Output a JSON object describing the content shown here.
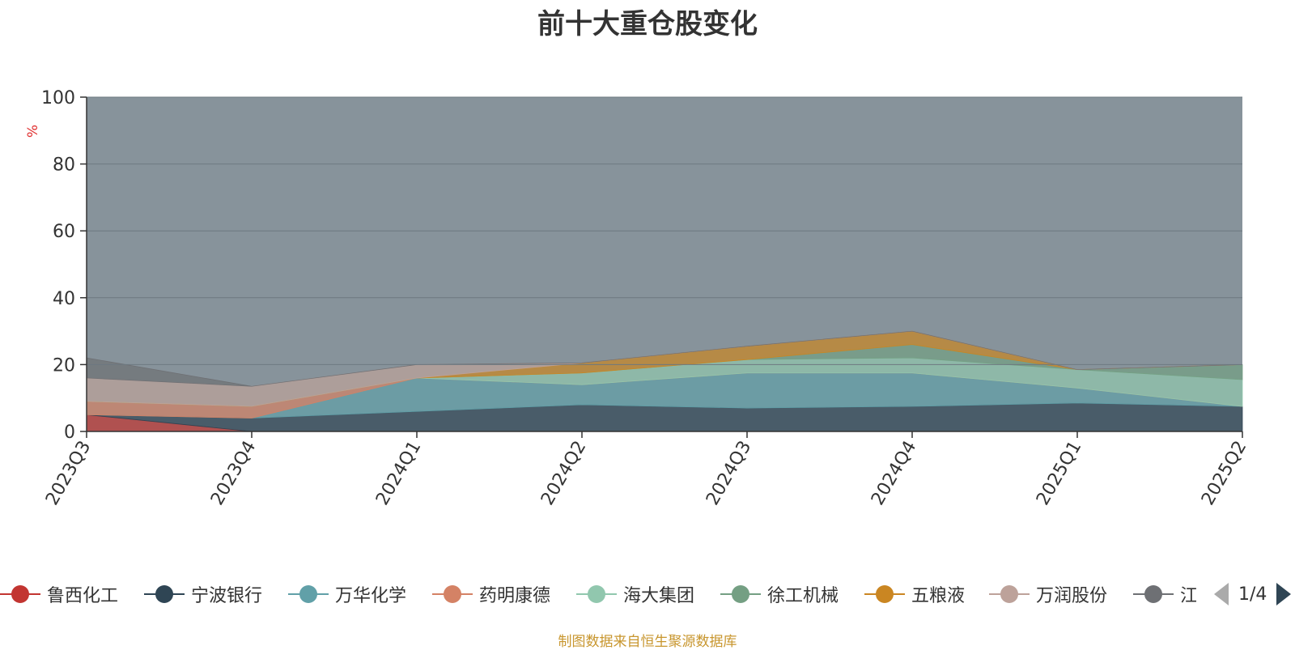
{
  "chart_data": {
    "type": "area",
    "title": "前十大重仓股变化",
    "ylabel": "%",
    "ylim": [
      0,
      100
    ],
    "yticks": [
      0,
      20,
      40,
      60,
      80,
      100
    ],
    "categories": [
      "2023Q3",
      "2023Q4",
      "2024Q1",
      "2024Q2",
      "2024Q3",
      "2024Q4",
      "2025Q1",
      "2025Q2"
    ],
    "grid": true,
    "series": [
      {
        "name": "鲁西化工",
        "color": "#c23531",
        "values": [
          5,
          0,
          0,
          0,
          0,
          0,
          0,
          0
        ]
      },
      {
        "name": "宁波银行",
        "color": "#2f4554",
        "values": [
          0,
          4,
          6,
          8,
          7,
          7.5,
          8.5,
          7.5
        ]
      },
      {
        "name": "万华化学",
        "color": "#61a0a8",
        "values": [
          0,
          0,
          10,
          6,
          10.5,
          10,
          4.5,
          0
        ]
      },
      {
        "name": "药明康德",
        "color": "#d48265",
        "values": [
          4,
          3.5,
          0,
          0,
          0,
          0,
          0,
          0
        ]
      },
      {
        "name": "海大集团",
        "color": "#91c7ae",
        "values": [
          0,
          0,
          0,
          3.5,
          4,
          4.5,
          5.5,
          8
        ]
      },
      {
        "name": "徐工机械",
        "color": "#749f83",
        "values": [
          0,
          0,
          0,
          0,
          0,
          4,
          0,
          4.5
        ]
      },
      {
        "name": "五粮液",
        "color": "#ca8622",
        "values": [
          0,
          0,
          0,
          3,
          4,
          4,
          0,
          0
        ]
      },
      {
        "name": "万润股份",
        "color": "#bda29a",
        "values": [
          7,
          6,
          4,
          0,
          0,
          0,
          0,
          0
        ]
      },
      {
        "name": "江苏银行",
        "color": "#6e7074",
        "values": [
          6,
          0,
          0,
          0,
          0,
          0,
          0,
          0
        ]
      }
    ],
    "plot_background": "#87939b",
    "legend_position": "bottom",
    "legend_page": "1/4",
    "source_note": "制图数据来自恒生聚源数据库"
  }
}
